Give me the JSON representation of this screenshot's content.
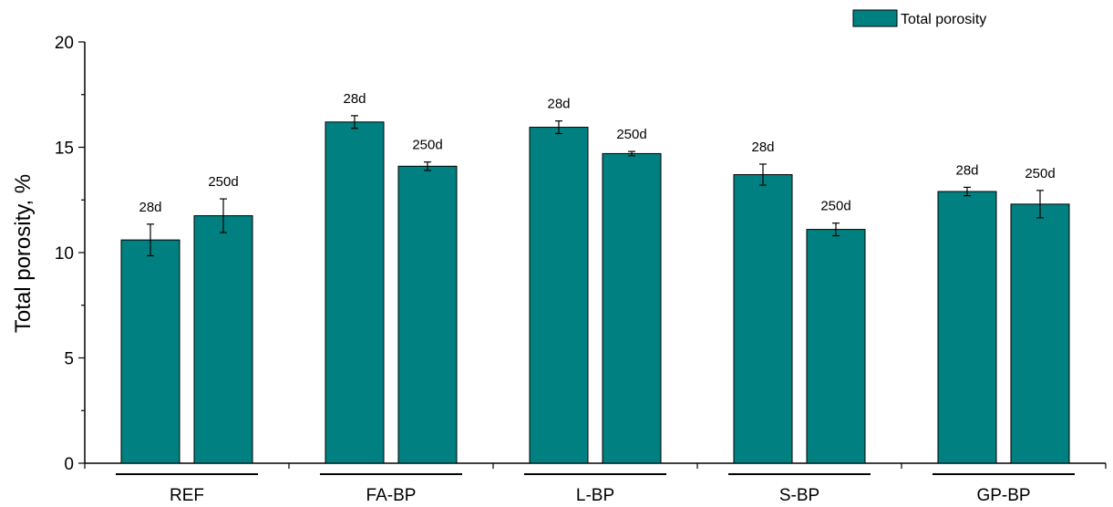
{
  "chart_data": {
    "type": "bar",
    "title": "",
    "xlabel": "",
    "ylabel": "Total porosity, %",
    "ylim": [
      0,
      20
    ],
    "yticks": [
      0,
      5,
      10,
      15,
      20
    ],
    "legend": {
      "position": "top-right",
      "entries": [
        "Total porosity"
      ]
    },
    "grid": false,
    "bar_color": "#008080",
    "groups": [
      {
        "name": "REF",
        "bars": [
          {
            "label": "28d",
            "value": 10.6,
            "error": 0.75
          },
          {
            "label": "250d",
            "value": 11.75,
            "error": 0.8
          }
        ]
      },
      {
        "name": "FA-BP",
        "bars": [
          {
            "label": "28d",
            "value": 16.2,
            "error": 0.3
          },
          {
            "label": "250d",
            "value": 14.1,
            "error": 0.2
          }
        ]
      },
      {
        "name": "L-BP",
        "bars": [
          {
            "label": "28d",
            "value": 15.95,
            "error": 0.3
          },
          {
            "label": "250d",
            "value": 14.7,
            "error": 0.1
          }
        ]
      },
      {
        "name": "S-BP",
        "bars": [
          {
            "label": "28d",
            "value": 13.7,
            "error": 0.5
          },
          {
            "label": "250d",
            "value": 11.1,
            "error": 0.3
          }
        ]
      },
      {
        "name": "GP-BP",
        "bars": [
          {
            "label": "28d",
            "value": 12.9,
            "error": 0.2
          },
          {
            "label": "250d",
            "value": 12.3,
            "error": 0.65
          }
        ]
      }
    ]
  }
}
